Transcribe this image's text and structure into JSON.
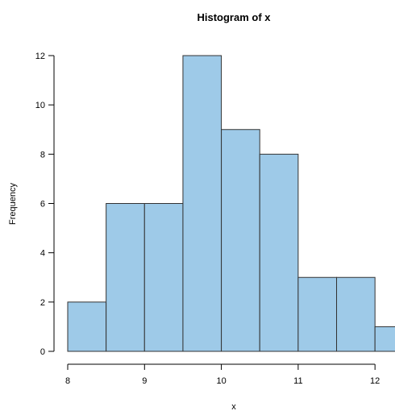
{
  "chart_data": {
    "type": "bar",
    "title": "Histogram of x",
    "xlabel": "x",
    "ylabel": "Frequency",
    "bin_edges": [
      8.0,
      8.5,
      9.0,
      9.5,
      10.0,
      10.5,
      11.0,
      11.5,
      12.0,
      12.5
    ],
    "values": [
      2,
      6,
      6,
      12,
      9,
      8,
      3,
      3,
      1
    ],
    "xlim": [
      8,
      12.25
    ],
    "ylim": [
      0,
      12
    ],
    "x_ticks": [
      8,
      9,
      10,
      11,
      12
    ],
    "x_tick_labels": [
      "8",
      "9",
      "10",
      "11",
      "12"
    ],
    "y_ticks": [
      0,
      2,
      4,
      6,
      8,
      10,
      12
    ],
    "y_tick_labels": [
      "0",
      "2",
      "4",
      "6",
      "8",
      "10",
      "12"
    ],
    "grid": false,
    "bar_color": "#9ecae8",
    "bar_edge_color": "#333333"
  }
}
